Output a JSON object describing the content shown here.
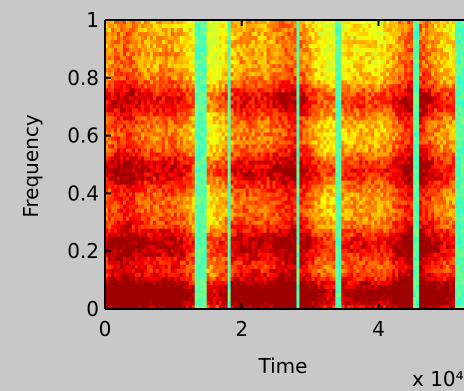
{
  "chart_data": {
    "type": "heatmap",
    "title": "",
    "xlabel": "Time",
    "ylabel": "Frequency",
    "x_exponent_label": "x 10⁴",
    "xlim": [
      0,
      5.25
    ],
    "ylim": [
      0,
      1
    ],
    "x_ticks": [
      0,
      2,
      4
    ],
    "x_tick_labels": [
      "0",
      "2",
      "4"
    ],
    "y_ticks": [
      0,
      0.2,
      0.4,
      0.6,
      0.8,
      1
    ],
    "y_tick_labels": [
      "0",
      "0.2",
      "0.4",
      "0.6",
      "0.8",
      "1"
    ],
    "grid": false,
    "colormap": "jet",
    "colors": {
      "background": "#c8c8c8",
      "axis": "#000000"
    },
    "quiet_intervals": [
      [
        1.3,
        1.5
      ],
      [
        1.78,
        1.85
      ],
      [
        2.78,
        2.84
      ],
      [
        3.38,
        3.44
      ],
      [
        4.52,
        4.6
      ],
      [
        5.12,
        5.25
      ]
    ],
    "formant_bands": [
      0.05,
      0.22,
      0.48,
      0.72
    ]
  }
}
